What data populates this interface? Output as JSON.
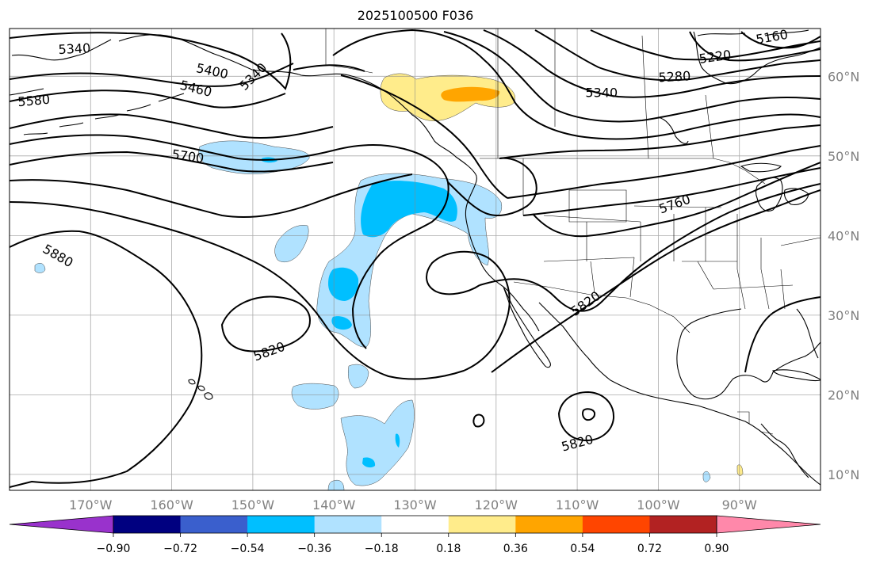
{
  "title": "2025100500 F036",
  "lon_ticks": [
    {
      "value": -170,
      "label": "170°W"
    },
    {
      "value": -160,
      "label": "160°W"
    },
    {
      "value": -150,
      "label": "150°W"
    },
    {
      "value": -140,
      "label": "140°W"
    },
    {
      "value": -130,
      "label": "130°W"
    },
    {
      "value": -120,
      "label": "120°W"
    },
    {
      "value": -110,
      "label": "110°W"
    },
    {
      "value": -100,
      "label": "100°W"
    },
    {
      "value": -90,
      "label": "90°W"
    }
  ],
  "lat_ticks": [
    {
      "value": 60,
      "label": "60°N"
    },
    {
      "value": 50,
      "label": "50°N"
    },
    {
      "value": 40,
      "label": "40°N"
    },
    {
      "value": 30,
      "label": "30°N"
    },
    {
      "value": 20,
      "label": "20°N"
    },
    {
      "value": 10,
      "label": "10°N"
    }
  ],
  "extent": {
    "lon_min": -180,
    "lon_max": -80,
    "lat_min": 8,
    "lat_max": 66
  },
  "colorbar": {
    "colors": [
      "#9932cc",
      "#000080",
      "#3a5fcd",
      "#00bfff",
      "#b0e2ff",
      "#ffffff",
      "#ffec8b",
      "#ffa500",
      "#ff4500",
      "#b22222",
      "#ff88aa"
    ],
    "labels": [
      "−0.90",
      "−0.72",
      "−0.54",
      "−0.36",
      "−0.18",
      "0.18",
      "0.36",
      "0.54",
      "0.72",
      "0.90"
    ]
  },
  "contour_labels": [
    {
      "text": "5340",
      "lon": -172,
      "lat": 63.5,
      "rot": -3
    },
    {
      "text": "5400",
      "lon": -155,
      "lat": 60.7,
      "rot": 12
    },
    {
      "text": "5460",
      "lon": -157,
      "lat": 58.5,
      "rot": 14
    },
    {
      "text": "5340",
      "lon": -150,
      "lat": 60.0,
      "rot": -45
    },
    {
      "text": "5580",
      "lon": -177,
      "lat": 57.0,
      "rot": -5
    },
    {
      "text": "5700",
      "lon": -158,
      "lat": 50.0,
      "rot": 8
    },
    {
      "text": "5880",
      "lon": -174,
      "lat": 37.5,
      "rot": 30
    },
    {
      "text": "5820",
      "lon": -148,
      "lat": 25.5,
      "rot": -20
    },
    {
      "text": "5820",
      "lon": -109,
      "lat": 31.5,
      "rot": -35
    },
    {
      "text": "5820",
      "lon": -110,
      "lat": 14.0,
      "rot": -15
    },
    {
      "text": "5760",
      "lon": -98,
      "lat": 44.0,
      "rot": -20
    },
    {
      "text": "5340",
      "lon": -107,
      "lat": 58.0,
      "rot": 0
    },
    {
      "text": "5280",
      "lon": -98,
      "lat": 60.0,
      "rot": -3
    },
    {
      "text": "5220",
      "lon": -93,
      "lat": 62.5,
      "rot": -8
    },
    {
      "text": "5160",
      "lon": -86,
      "lat": 65.0,
      "rot": -10
    }
  ]
}
